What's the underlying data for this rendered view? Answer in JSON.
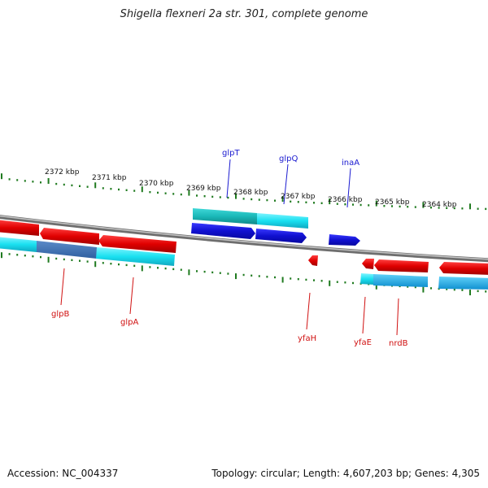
{
  "title": "Shigella flexneri 2a str. 301, complete genome",
  "footer": {
    "accession": "Accession: NC_004337",
    "summary": "Topology: circular; Length: 4,607,203 bp; Genes: 4,305"
  },
  "colors": {
    "backbone": "#8c8c8c",
    "tick": "#1f7a1f",
    "gene_forward": "#1010d0",
    "gene_forward_pale": "#22d8e0",
    "gene_reverse": "#e00000",
    "gene_reverse_pale": "#19e0f0",
    "label_forward": "#1a1ad0",
    "label_reverse": "#d01010",
    "scale_text": "#111111"
  },
  "scale_labels": [
    "2372 kbp",
    "2371 kbp",
    "2370 kbp",
    "2369 kbp",
    "2368 kbp",
    "2367 kbp",
    "2366 kbp",
    "2365 kbp",
    "2364 kbp"
  ],
  "genes_forward": [
    {
      "name": "glpT"
    },
    {
      "name": "glpQ"
    },
    {
      "name": "inaA"
    }
  ],
  "genes_reverse": [
    {
      "name": "glpB"
    },
    {
      "name": "glpA"
    },
    {
      "name": "yfaH"
    },
    {
      "name": "yfaE"
    },
    {
      "name": "nrdB"
    }
  ]
}
